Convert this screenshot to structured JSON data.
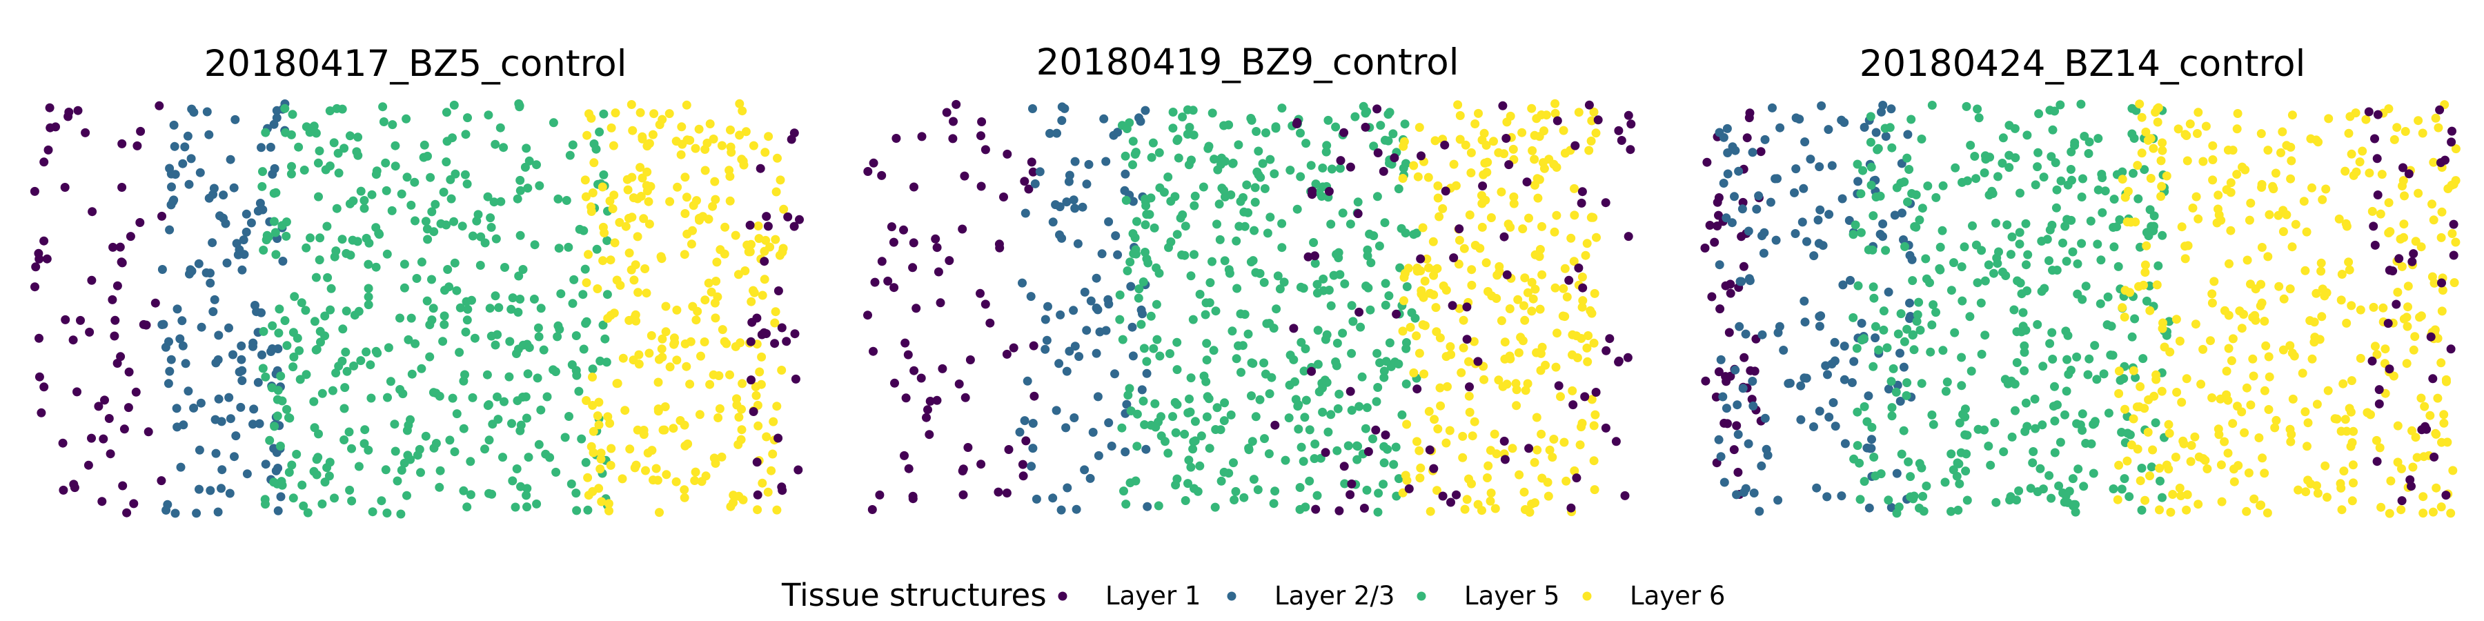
{
  "chart_data": [
    {
      "type": "scatter",
      "title": "20180417_BZ5_control",
      "xlabel": "",
      "ylabel": "",
      "xlim": [
        0,
        100
      ],
      "ylim": [
        0,
        100
      ],
      "grid": false,
      "regions": [
        {
          "layer": "Layer 1",
          "x_range": [
            0,
            17
          ],
          "count": 70
        },
        {
          "layer": "Layer 2/3",
          "x_range": [
            17,
            33
          ],
          "count": 150
        },
        {
          "layer": "Layer 5",
          "x_range": [
            30,
            75
          ],
          "count": 440
        },
        {
          "layer": "Layer 6",
          "x_range": [
            72,
            98
          ],
          "count": 300
        },
        {
          "layer": "Layer 1",
          "x_range": [
            93,
            100
          ],
          "count": 30
        }
      ]
    },
    {
      "type": "scatter",
      "title": "20180419_BZ9_control",
      "xlabel": "",
      "ylabel": "",
      "xlim": [
        0,
        100
      ],
      "ylim": [
        0,
        100
      ],
      "grid": false,
      "regions": [
        {
          "layer": "Layer 1",
          "x_range": [
            0,
            22
          ],
          "count": 80
        },
        {
          "layer": "Layer 2/3",
          "x_range": [
            20,
            37
          ],
          "count": 100
        },
        {
          "layer": "Layer 5",
          "x_range": [
            33,
            72
          ],
          "count": 430
        },
        {
          "layer": "Layer 6",
          "x_range": [
            70,
            96
          ],
          "count": 290
        },
        {
          "layer": "Layer 1",
          "x_range": [
            52,
            88
          ],
          "count": 60
        },
        {
          "layer": "Layer 1",
          "x_range": [
            90,
            100
          ],
          "count": 30
        }
      ]
    },
    {
      "type": "scatter",
      "title": "20180424_BZ14_control",
      "xlabel": "",
      "ylabel": "",
      "xlim": [
        0,
        100
      ],
      "ylim": [
        0,
        100
      ],
      "grid": false,
      "regions": [
        {
          "layer": "Layer 1",
          "x_range": [
            0,
            8
          ],
          "count": 50
        },
        {
          "layer": "Layer 2/3",
          "x_range": [
            2,
            28
          ],
          "count": 170
        },
        {
          "layer": "Layer 5",
          "x_range": [
            20,
            62
          ],
          "count": 420
        },
        {
          "layer": "Layer 6",
          "x_range": [
            55,
            100
          ],
          "count": 420
        },
        {
          "layer": "Layer 1",
          "x_range": [
            88,
            100
          ],
          "count": 40
        }
      ]
    }
  ],
  "legend": {
    "title": "Tissue structures",
    "placement": "bottom",
    "items": [
      {
        "label": "Layer 1",
        "color": "#440154"
      },
      {
        "label": "Layer 2/3",
        "color": "#31688e"
      },
      {
        "label": "Layer 5",
        "color": "#35b779"
      },
      {
        "label": "Layer 6",
        "color": "#fde725"
      }
    ]
  }
}
